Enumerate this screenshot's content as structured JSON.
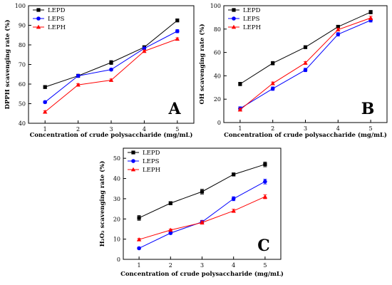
{
  "chart_data": [
    {
      "type": "line",
      "panel_letter": "A",
      "xlabel": "Concentration of crude polysaccharide (mg/mL)",
      "ylabel": "DPPH scavenging rate (%)",
      "x": [
        1,
        2,
        3,
        4,
        5
      ],
      "xlim": [
        0.5,
        5.5
      ],
      "ylim": [
        40,
        100
      ],
      "yticks": [
        40,
        50,
        60,
        70,
        80,
        90,
        100
      ],
      "legend_position": "top-left",
      "series": [
        {
          "name": "LEPD",
          "values": [
            58.5,
            64.2,
            71.0,
            78.8,
            92.5
          ],
          "errors": [
            0.8,
            0.8,
            1.0,
            0.8,
            0.8
          ],
          "color": "#000000",
          "marker": "square"
        },
        {
          "name": "LEPS",
          "values": [
            50.8,
            64.2,
            67.4,
            78.2,
            87.0
          ],
          "errors": [
            0.6,
            0.6,
            0.6,
            0.6,
            0.8
          ],
          "color": "#0000ff",
          "marker": "circle"
        },
        {
          "name": "LEPH",
          "values": [
            45.8,
            59.6,
            62.0,
            76.8,
            83.0
          ],
          "errors": [
            0.6,
            0.6,
            0.6,
            0.6,
            0.6
          ],
          "color": "#ff0000",
          "marker": "triangle"
        }
      ]
    },
    {
      "type": "line",
      "panel_letter": "B",
      "xlabel": "Concentration of crude polysaccharide (mg/mL)",
      "ylabel": "OH scavenging rate (%)",
      "x": [
        1,
        2,
        3,
        4,
        5
      ],
      "xlim": [
        0.5,
        5.5
      ],
      "ylim": [
        0,
        100
      ],
      "yticks": [
        0,
        20,
        40,
        60,
        80,
        100
      ],
      "legend_position": "top-left",
      "series": [
        {
          "name": "LEPD",
          "values": [
            33.0,
            50.8,
            64.5,
            82.0,
            94.5
          ],
          "errors": [
            1.5,
            1.5,
            1.2,
            1.2,
            1.5
          ],
          "color": "#000000",
          "marker": "square"
        },
        {
          "name": "LEPS",
          "values": [
            12.0,
            29.0,
            45.0,
            75.5,
            87.5
          ],
          "errors": [
            1.5,
            1.5,
            1.5,
            1.5,
            1.5
          ],
          "color": "#0000ff",
          "marker": "circle"
        },
        {
          "name": "LEPH",
          "values": [
            11.0,
            33.5,
            51.0,
            79.5,
            89.5
          ],
          "errors": [
            1.2,
            1.2,
            1.2,
            1.2,
            1.5
          ],
          "color": "#ff0000",
          "marker": "triangle"
        }
      ]
    },
    {
      "type": "line",
      "panel_letter": "C",
      "xlabel": "Concentration of crude polysaccharide (mg/mL)",
      "ylabel": "H₂O₂ scavenging rate (%)",
      "x": [
        1,
        2,
        3,
        4,
        5
      ],
      "xlim": [
        0.5,
        5.5
      ],
      "ylim": [
        0,
        55
      ],
      "yticks": [
        0,
        10,
        20,
        30,
        40,
        50
      ],
      "legend_position": "top-left",
      "series": [
        {
          "name": "LEPD",
          "values": [
            20.5,
            27.8,
            33.5,
            42.0,
            47.0
          ],
          "errors": [
            1.2,
            0.8,
            1.2,
            0.8,
            1.2
          ],
          "color": "#000000",
          "marker": "square"
        },
        {
          "name": "LEPS",
          "values": [
            5.5,
            13.0,
            18.5,
            30.0,
            38.5
          ],
          "errors": [
            0.5,
            0.5,
            0.8,
            1.0,
            1.2
          ],
          "color": "#0000ff",
          "marker": "circle"
        },
        {
          "name": "LEPH",
          "values": [
            9.8,
            14.5,
            18.2,
            24.0,
            31.0
          ],
          "errors": [
            0.5,
            0.5,
            0.8,
            0.8,
            1.0
          ],
          "color": "#ff0000",
          "marker": "triangle"
        }
      ]
    }
  ]
}
